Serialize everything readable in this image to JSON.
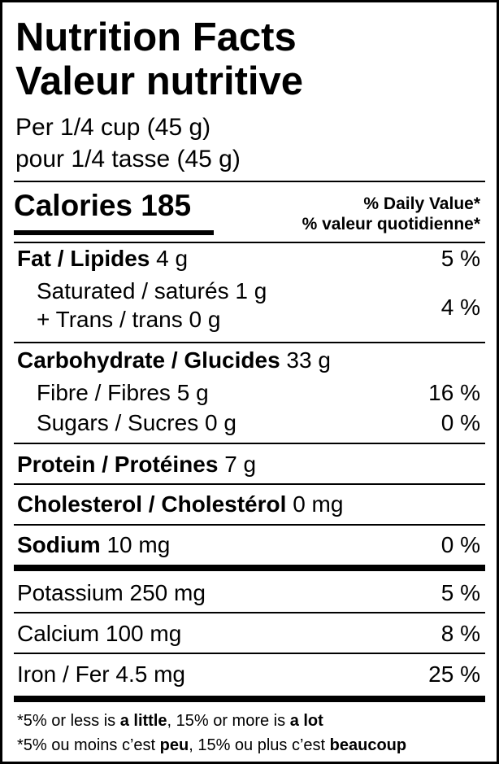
{
  "header": {
    "title": "Nutrition Facts",
    "title_fr": "Valeur nutritive",
    "serving": "Per 1/4 cup (45 g)",
    "serving_fr": "pour 1/4 tasse (45 g)"
  },
  "calories": {
    "label": "Calories",
    "value": "185"
  },
  "daily_value": {
    "heading": "% Daily Value*",
    "heading_fr": "% valeur quotidienne*"
  },
  "fat": {
    "label": "Fat / Lipides",
    "amount": "4 g",
    "dv": "5 %"
  },
  "saturated_trans": {
    "saturated_label": "Saturated / saturés",
    "saturated_amount": "1 g",
    "trans_label": "+ Trans / trans",
    "trans_amount": "0 g",
    "dv": "4 %"
  },
  "carbohydrate": {
    "label": "Carbohydrate / Glucides",
    "amount": "33 g"
  },
  "fibre": {
    "label": "Fibre / Fibres",
    "amount": "5 g",
    "dv": "16 %"
  },
  "sugars": {
    "label": "Sugars / Sucres",
    "amount": "0 g",
    "dv": "0 %"
  },
  "protein": {
    "label": "Protein / Protéines",
    "amount": "7 g"
  },
  "cholesterol": {
    "label": "Cholesterol / Cholestérol",
    "amount": "0 mg"
  },
  "sodium": {
    "label": "Sodium",
    "amount": "10 mg",
    "dv": "0 %"
  },
  "potassium": {
    "label": "Potassium 250 mg",
    "dv": "5 %"
  },
  "calcium": {
    "label": "Calcium 100 mg",
    "dv": "8 %"
  },
  "iron": {
    "label": "Iron / Fer 4.5 mg",
    "dv": "25 %"
  },
  "footnote": {
    "en": [
      "*5% or less is ",
      "a little",
      ", 15% or more is ",
      "a lot"
    ],
    "fr": [
      "*5% ou moins c’est ",
      "peu",
      ", 15% ou plus c’est ",
      "beaucoup"
    ]
  }
}
